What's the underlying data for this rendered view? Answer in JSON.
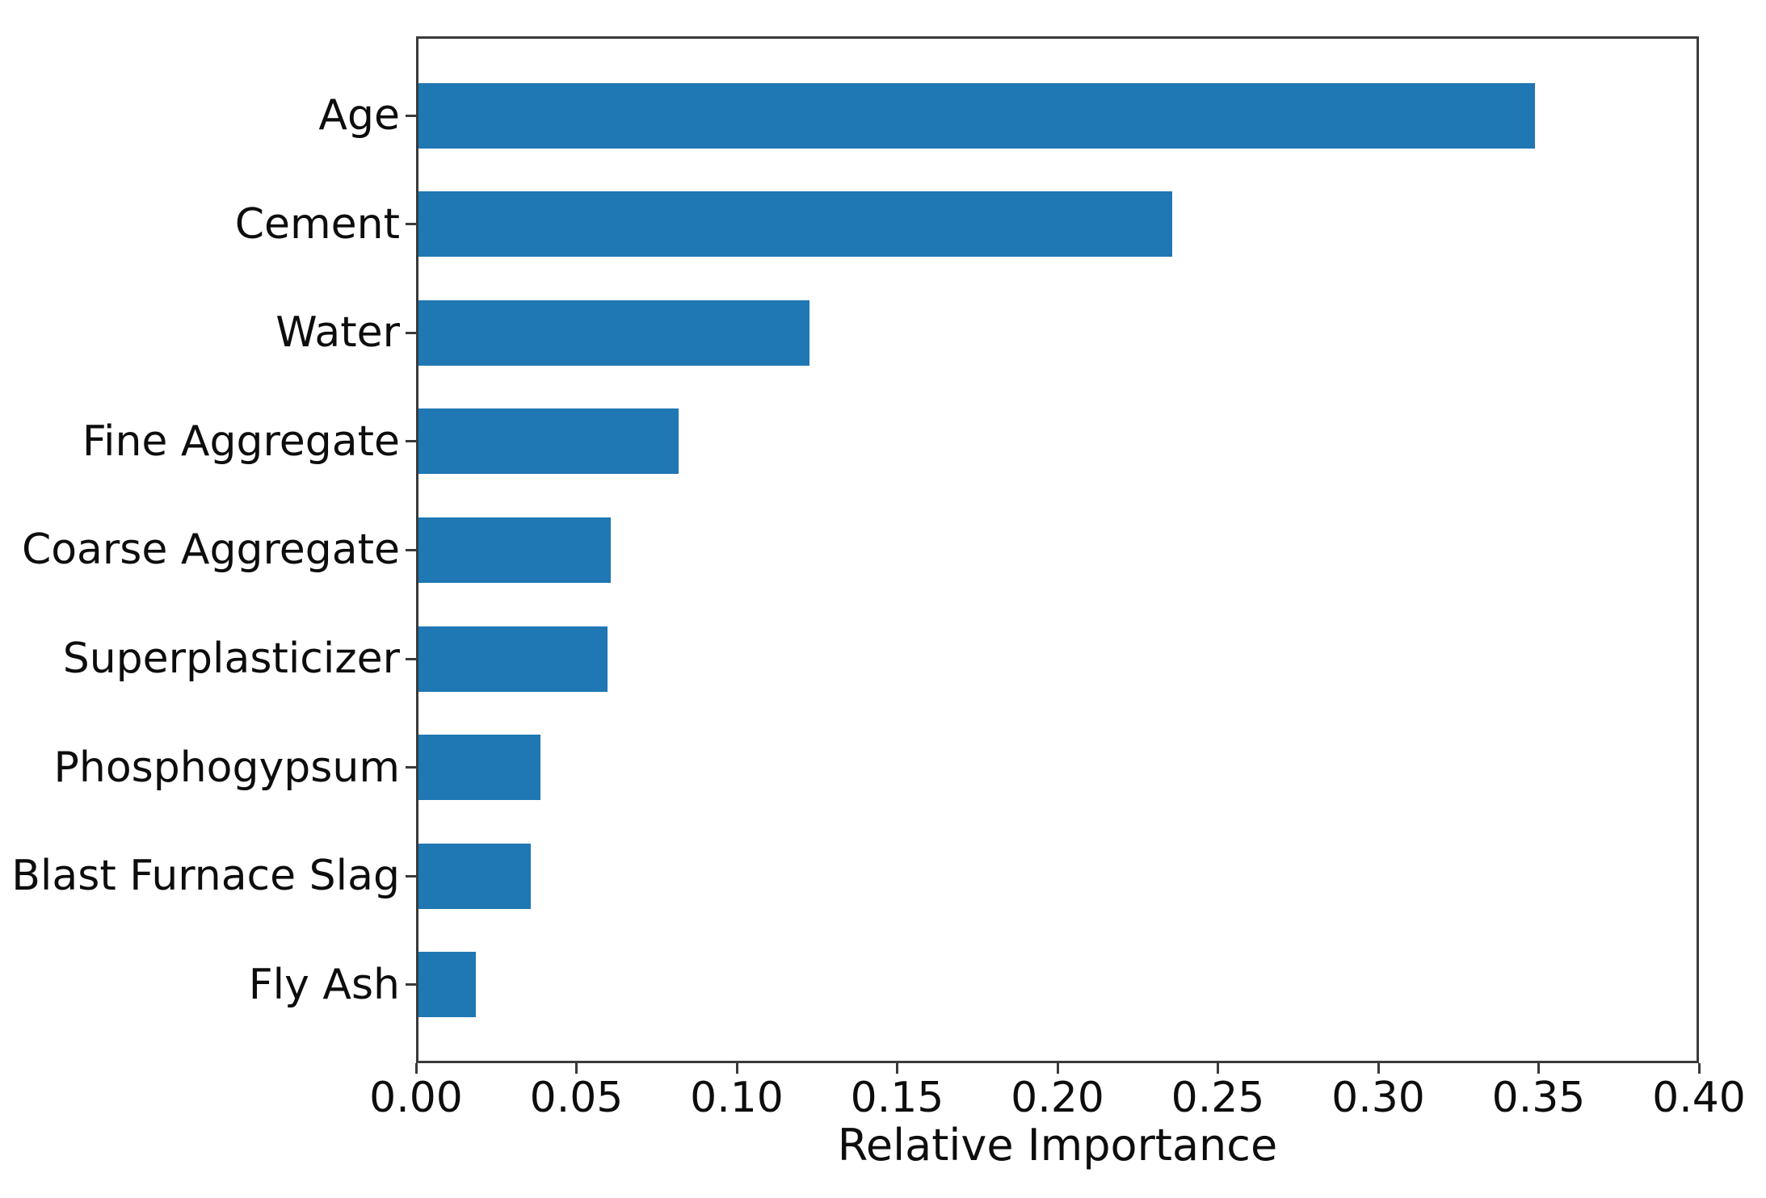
{
  "chart_data": {
    "type": "bar",
    "orientation": "horizontal",
    "title": "",
    "xlabel": "Relative Importance",
    "ylabel": "",
    "categories": [
      "Age",
      "Cement",
      "Water",
      "Fine Aggregate",
      "Coarse Aggregate",
      "Superplasticizer",
      "Phosphogypsum",
      "Blast Furnace Slag",
      "Fly Ash"
    ],
    "values": [
      0.348,
      0.235,
      0.122,
      0.081,
      0.06,
      0.059,
      0.038,
      0.035,
      0.018
    ],
    "xlim": [
      0.0,
      0.4
    ],
    "xticks": [
      0.0,
      0.05,
      0.1,
      0.15,
      0.2,
      0.25,
      0.3,
      0.35,
      0.4
    ],
    "xtick_labels": [
      "0.00",
      "0.05",
      "0.10",
      "0.15",
      "0.20",
      "0.25",
      "0.30",
      "0.35",
      "0.40"
    ],
    "bar_color": "#1f77b4",
    "spine_color": "#3a3a3a",
    "grid": false,
    "legend": "none"
  }
}
